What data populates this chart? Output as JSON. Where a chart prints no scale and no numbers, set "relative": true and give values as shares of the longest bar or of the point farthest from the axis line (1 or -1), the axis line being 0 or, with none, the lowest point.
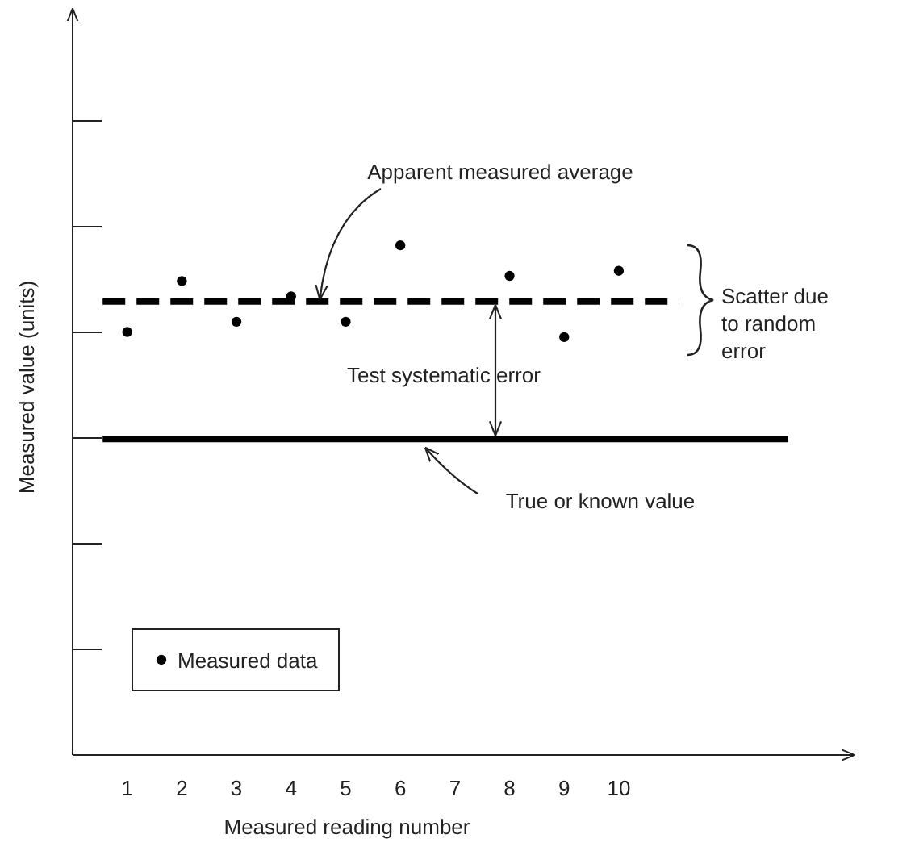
{
  "chart_data": {
    "type": "scatter",
    "xlabel": "Measured reading number",
    "ylabel": "Measured value (units)",
    "relative": true,
    "x": [
      1,
      2,
      3,
      4,
      5,
      6,
      8,
      9,
      10
    ],
    "xlim": [
      0,
      14.3
    ],
    "xticks": [
      1,
      2,
      3,
      4,
      5,
      6,
      7,
      8,
      9,
      10
    ],
    "series": [
      {
        "name": "Measured data",
        "color": "#000000",
        "values": [
          0.83,
          0.93,
          0.85,
          0.9,
          0.85,
          1,
          0.94,
          0.82,
          0.95
        ]
      }
    ],
    "marker": "circle",
    "legend": "bottom left",
    "ref_lines": [
      {
        "axis": "y",
        "value": 0.89,
        "line_style": "dashed",
        "color": "#000000"
      },
      {
        "axis": "y",
        "value": 0.62,
        "line_style": "solid",
        "color": "#000000"
      }
    ],
    "annotations": [
      {
        "text": "Apparent measured average",
        "x": 4.5,
        "y": 0.89
      },
      "Test systematic error",
      "True or known value",
      "Scatter due to random error"
    ]
  }
}
